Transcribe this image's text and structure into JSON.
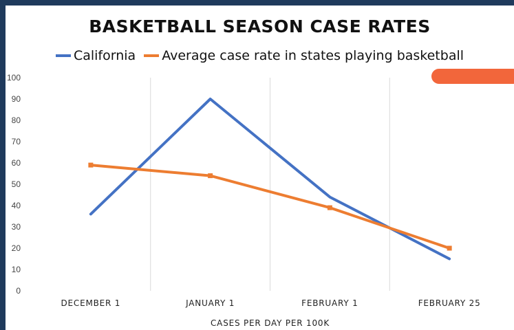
{
  "chart_data": {
    "type": "line",
    "title": "BASKETBALL SEASON CASE RATES",
    "xlabel": "CASES PER DAY PER 100K",
    "ylabel": "",
    "categories": [
      "DECEMBER 1",
      "JANUARY 1",
      "FEBRUARY 1",
      "FEBRUARY 25"
    ],
    "ylim": [
      0,
      100
    ],
    "yticks": [
      0,
      10,
      20,
      30,
      40,
      50,
      60,
      70,
      80,
      90,
      100
    ],
    "grid": "vertical",
    "legend_position": "top",
    "series": [
      {
        "name": "California",
        "color": "#4472c4",
        "values": [
          36,
          90,
          44,
          15
        ]
      },
      {
        "name": "Average case rate in states playing basketball",
        "color": "#ed7d31",
        "values": [
          59,
          54,
          39,
          20
        ]
      }
    ]
  },
  "accent_color": "#f2663b",
  "frame_color": "#1f3a5c"
}
